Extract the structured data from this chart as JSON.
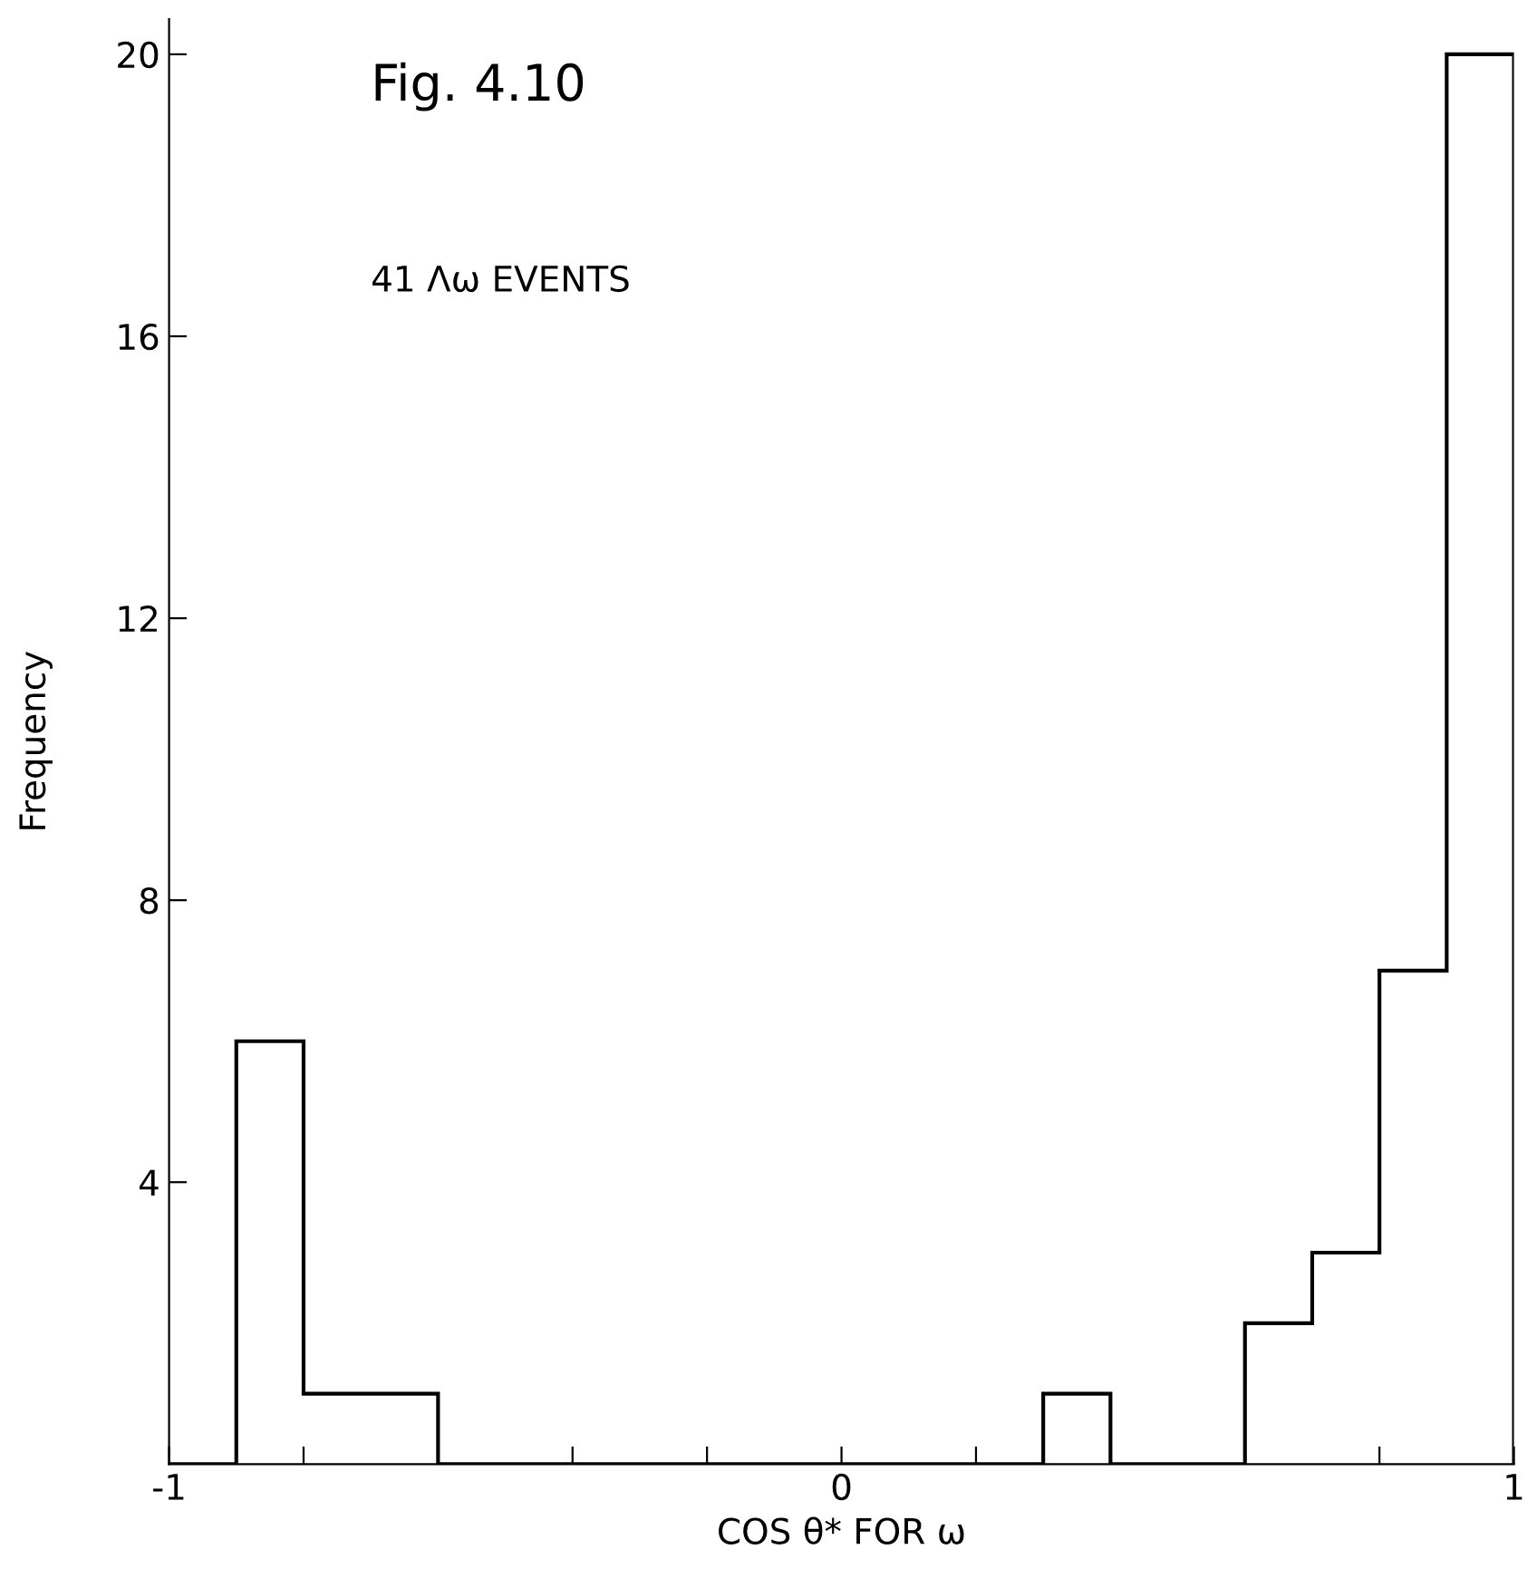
{
  "chart_data": {
    "type": "histogram",
    "xlabel": "COS θ* FOR ω",
    "ylabel": "Frequency",
    "bins": [
      -1.0,
      -0.9,
      -0.8,
      -0.7,
      -0.6,
      -0.5,
      -0.4,
      -0.3,
      -0.2,
      -0.1,
      0.0,
      0.1,
      0.2,
      0.3,
      0.4,
      0.5,
      0.6,
      0.7,
      0.8,
      0.9,
      1.0
    ],
    "values": [
      0,
      6,
      1,
      1,
      0,
      0,
      0,
      0,
      0,
      0,
      0,
      0,
      0,
      1,
      0,
      0,
      2,
      3,
      7,
      20
    ],
    "color": "#000000",
    "xlim": [
      -1,
      1
    ],
    "xticks": [
      -1,
      {
        "value": -0.8,
        "label": null
      },
      {
        "value": -0.6,
        "label": null
      },
      {
        "value": -0.4,
        "label": null
      },
      {
        "value": -0.2,
        "label": null
      },
      0,
      {
        "value": 0.2,
        "label": null
      },
      {
        "value": 0.4,
        "label": null
      },
      {
        "value": 0.6,
        "label": null
      },
      {
        "value": 0.8,
        "label": null
      },
      1
    ],
    "ylim": [
      0,
      20.5
    ],
    "yticks": [
      4,
      8,
      12,
      16,
      20
    ],
    "grid": false,
    "annotations": [
      "Fig. 4.10",
      "41 Λω EVENTS"
    ]
  }
}
